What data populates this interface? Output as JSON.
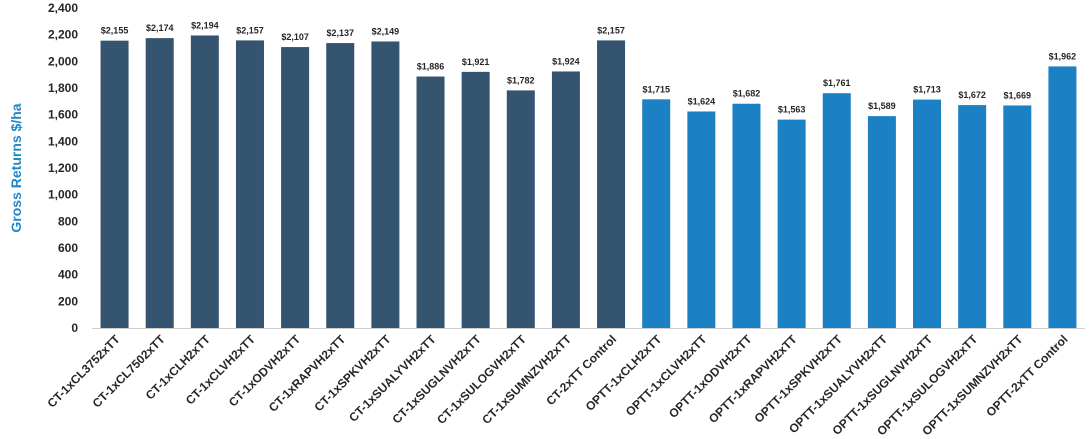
{
  "chart_data": {
    "type": "bar",
    "title": "",
    "xlabel": "",
    "ylabel": "Gross Returns $/ha",
    "ylim": [
      0,
      2400
    ],
    "yticks": [
      "0",
      "200",
      "400",
      "600",
      "800",
      "1,000",
      "1,200",
      "1,400",
      "1,600",
      "1,800",
      "2,000",
      "2,200",
      "2,400"
    ],
    "grid": false,
    "legend": "none",
    "colors": {
      "CT": "#34546f",
      "OPTT": "#1b80c4"
    },
    "categories": [
      "CT-1xCL3752xTT",
      "CT-1xCL7502xTT",
      "CT-1xCLH2xTT",
      "CT-1xCLVH2xTT",
      "CT-1xODVH2xTT",
      "CT-1xRAPVH2xTT",
      "CT-1xSPKVH2xTT",
      "CT-1xSUALYVH2xTT",
      "CT-1xSUGLNVH2xTT",
      "CT-1xSULOGVH2xTT",
      "CT-1xSUMNZVH2xTT",
      "CT-2xTT Control",
      "OPTT-1xCLH2xTT",
      "OPTT-1xCLVH2xTT",
      "OPTT-1xODVH2xTT",
      "OPTT-1xRAPVH2xTT",
      "OPTT-1xSPKVH2xTT",
      "OPTT-1xSUALYVH2xTT",
      "OPTT-1xSUGLNVH2xTT",
      "OPTT-1xSULOGVH2xTT",
      "OPTT-1xSUMNZVH2xTT",
      "OPTT-2xTT Control"
    ],
    "values": [
      2155,
      2174,
      2194,
      2157,
      2107,
      2137,
      2149,
      1886,
      1921,
      1782,
      1924,
      2157,
      1715,
      1624,
      1682,
      1563,
      1761,
      1589,
      1713,
      1672,
      1669,
      1962
    ],
    "data_labels": [
      "$2,155",
      "$2,174",
      "$2,194",
      "$2,157",
      "$2,107",
      "$2,137",
      "$2,149",
      "$1,886",
      "$1,921",
      "$1,782",
      "$1,924",
      "$2,157",
      "$1,715",
      "$1,624",
      "$1,682",
      "$1,563",
      "$1,761",
      "$1,589",
      "$1,713",
      "$1,672",
      "$1,669",
      "$1,962"
    ],
    "groups": [
      "CT",
      "CT",
      "CT",
      "CT",
      "CT",
      "CT",
      "CT",
      "CT",
      "CT",
      "CT",
      "CT",
      "CT",
      "OPTT",
      "OPTT",
      "OPTT",
      "OPTT",
      "OPTT",
      "OPTT",
      "OPTT",
      "OPTT",
      "OPTT",
      "OPTT"
    ]
  }
}
